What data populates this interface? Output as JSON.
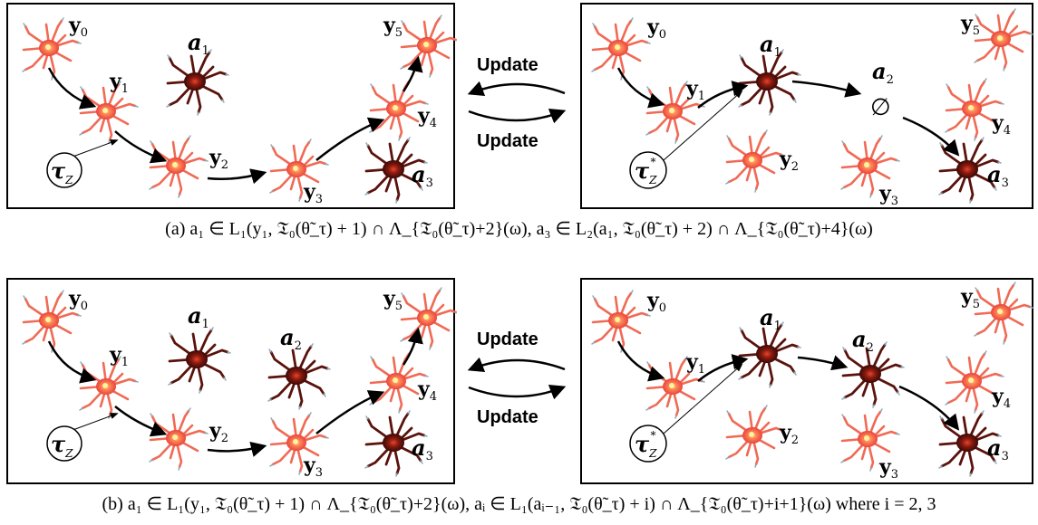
{
  "labels": {
    "y0": "y",
    "y0_sub": "0",
    "y1": "y",
    "y1_sub": "1",
    "y2": "y",
    "y2_sub": "2",
    "y3": "y",
    "y3_sub": "3",
    "y4": "y",
    "y4_sub": "4",
    "y5": "y",
    "y5_sub": "5",
    "a1": "a",
    "a1_sub": "1",
    "a2": "a",
    "a2_sub": "2",
    "a3": "a",
    "a3_sub": "3",
    "tau": "τ",
    "tau_sub": "Z",
    "tau_star": "*",
    "empty": "∅"
  },
  "update_top": "Update",
  "update_bottom": "Update",
  "caption_a": "(a) a₁ ∈ L₁(y₁, 𝔗₀(θ̃_τ) + 1) ∩ Λ_{𝔗₀(θ̃_τ)+2}(ω), a₃ ∈ L₂(a₁, 𝔗₀(θ̃_τ) + 2) ∩ Λ_{𝔗₀(θ̃_τ)+4}(ω)",
  "caption_b": "(b) a₁ ∈ L₁(y₁, 𝔗₀(θ̃_τ) + 1) ∩ Λ_{𝔗₀(θ̃_τ)+2}(ω), aᵢ ∈ L₁(aᵢ₋₁, 𝔗₀(θ̃_τ) + i) ∩ Λ_{𝔗₀(θ̃_τ)+i+1}(ω) where i = 2, 3"
}
